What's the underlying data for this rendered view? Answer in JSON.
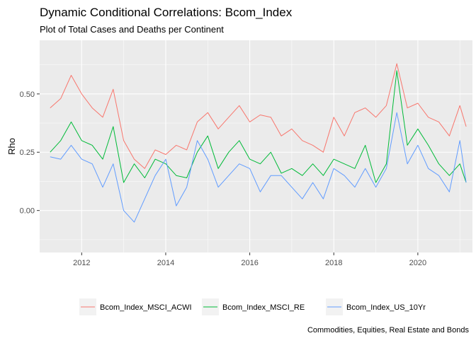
{
  "chart_data": {
    "type": "line",
    "title": "Dynamic Conditional Correlations: Bcom_Index",
    "subtitle": "Plot of Total Cases and Deaths per Continent",
    "xlabel": "",
    "ylabel": "Rho",
    "caption": "Commodities, Equities, Real Estate and Bonds",
    "xlim": [
      2011.0,
      2021.3
    ],
    "ylim": [
      -0.18,
      0.73
    ],
    "x_ticks": [
      2012,
      2014,
      2016,
      2018,
      2020
    ],
    "x_tick_labels": [
      "2012",
      "2014",
      "2016",
      "2018",
      "2020"
    ],
    "y_ticks": [
      0.0,
      0.25,
      0.5
    ],
    "y_tick_labels": [
      "0.00",
      "0.25",
      "0.50"
    ],
    "grid": true,
    "legend_position": "bottom",
    "background_color": "#EBEBEB",
    "x": [
      2011.25,
      2011.5,
      2011.75,
      2012.0,
      2012.25,
      2012.5,
      2012.75,
      2013.0,
      2013.25,
      2013.5,
      2013.75,
      2014.0,
      2014.25,
      2014.5,
      2014.75,
      2015.0,
      2015.25,
      2015.5,
      2015.75,
      2016.0,
      2016.25,
      2016.5,
      2016.75,
      2017.0,
      2017.25,
      2017.5,
      2017.75,
      2018.0,
      2018.25,
      2018.5,
      2018.75,
      2019.0,
      2019.25,
      2019.5,
      2019.75,
      2020.0,
      2020.25,
      2020.5,
      2020.75,
      2021.0,
      2021.15
    ],
    "series": [
      {
        "name": "Bcom_Index_MSCI_ACWI",
        "color": "#F8766D",
        "values": [
          0.44,
          0.48,
          0.58,
          0.5,
          0.44,
          0.4,
          0.52,
          0.3,
          0.22,
          0.18,
          0.26,
          0.24,
          0.28,
          0.26,
          0.38,
          0.42,
          0.35,
          0.4,
          0.45,
          0.38,
          0.41,
          0.4,
          0.32,
          0.35,
          0.3,
          0.28,
          0.25,
          0.4,
          0.32,
          0.42,
          0.44,
          0.4,
          0.45,
          0.63,
          0.44,
          0.46,
          0.4,
          0.38,
          0.32,
          0.45,
          0.36
        ]
      },
      {
        "name": "Bcom_Index_MSCI_RE",
        "color": "#00BA38",
        "values": [
          0.25,
          0.3,
          0.38,
          0.3,
          0.28,
          0.22,
          0.36,
          0.12,
          0.2,
          0.14,
          0.22,
          0.2,
          0.15,
          0.14,
          0.25,
          0.32,
          0.18,
          0.25,
          0.3,
          0.22,
          0.2,
          0.25,
          0.16,
          0.18,
          0.15,
          0.2,
          0.15,
          0.22,
          0.2,
          0.18,
          0.28,
          0.12,
          0.2,
          0.6,
          0.28,
          0.35,
          0.28,
          0.2,
          0.15,
          0.2,
          0.12
        ]
      },
      {
        "name": "Bcom_Index_US_10Yr",
        "color": "#619CFF",
        "values": [
          0.23,
          0.22,
          0.28,
          0.22,
          0.2,
          0.1,
          0.2,
          0.0,
          -0.05,
          0.05,
          0.15,
          0.22,
          0.02,
          0.1,
          0.3,
          0.22,
          0.1,
          0.15,
          0.2,
          0.18,
          0.08,
          0.15,
          0.15,
          0.1,
          0.05,
          0.12,
          0.05,
          0.18,
          0.15,
          0.1,
          0.18,
          0.1,
          0.18,
          0.42,
          0.2,
          0.28,
          0.18,
          0.15,
          0.08,
          0.3,
          0.12
        ]
      }
    ]
  }
}
